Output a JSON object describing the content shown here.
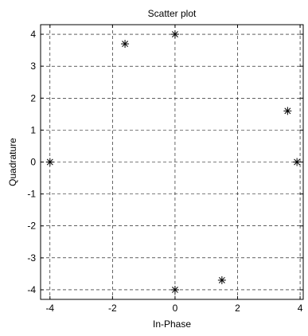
{
  "chart_data": {
    "type": "scatter",
    "title": "Scatter plot",
    "xlabel": "In-Phase",
    "ylabel": "Quadrature",
    "xlim": [
      -4.3,
      4.1
    ],
    "ylim": [
      -4.3,
      4.3
    ],
    "xticks": [
      -4,
      -2,
      0,
      2,
      4
    ],
    "yticks": [
      -4,
      -3,
      -2,
      -1,
      0,
      1,
      2,
      3,
      4
    ],
    "grid": true,
    "marker": "asterisk",
    "points": [
      {
        "x": -1.6,
        "y": 3.7
      },
      {
        "x": 0.0,
        "y": 4.0
      },
      {
        "x": 3.6,
        "y": 1.6
      },
      {
        "x": 3.9,
        "y": 0.0
      },
      {
        "x": -4.0,
        "y": 0.0
      },
      {
        "x": 1.5,
        "y": -3.7
      },
      {
        "x": 0.0,
        "y": -4.0
      }
    ]
  }
}
